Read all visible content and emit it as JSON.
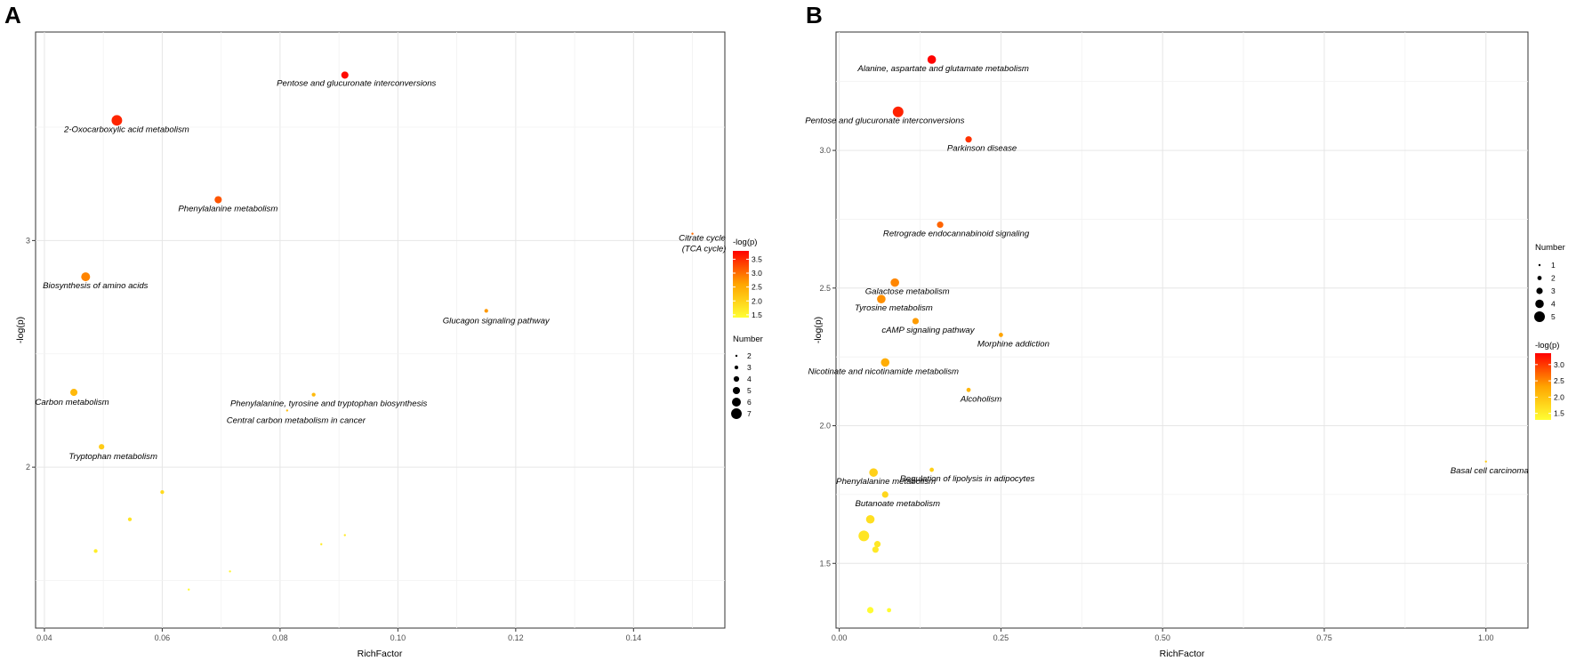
{
  "chart_data": [
    {
      "panel": "A",
      "type": "scatter",
      "xlabel": "RichFactor",
      "ylabel": "-log(p)",
      "xlim": [
        0.0385,
        0.1555
      ],
      "ylim": [
        1.29,
        3.92
      ],
      "xticks": [
        0.04,
        0.06,
        0.08,
        0.1,
        0.12,
        0.14
      ],
      "xtick_labels": [
        "0.04",
        "0.06",
        "0.08",
        "0.10",
        "0.12",
        "0.14"
      ],
      "yticks": [
        2,
        3
      ],
      "ytick_labels": [
        "2",
        "3"
      ],
      "color_legend": {
        "title": "-log(p)",
        "min": 1.4,
        "max": 3.8,
        "ticks": [
          1.5,
          2.0,
          2.5,
          3.0,
          3.5
        ],
        "tick_labels": [
          "1.5",
          "2.0",
          "2.5",
          "3.0",
          "3.5"
        ]
      },
      "size_legend": {
        "title": "Number",
        "values": [
          2,
          3,
          4,
          5,
          6,
          7
        ],
        "labels": [
          "2",
          "3",
          "4",
          "5",
          "6",
          "7"
        ]
      },
      "points": [
        {
          "x": 0.091,
          "y": 3.73,
          "size": 5,
          "label": "Pentose and glucuronate interconversions"
        },
        {
          "x": 0.0523,
          "y": 3.53,
          "size": 7,
          "label": "2-Oxocarboxylic acid metabolism"
        },
        {
          "x": 0.0695,
          "y": 3.18,
          "size": 5,
          "label": "Phenylalanine metabolism"
        },
        {
          "x": 0.15,
          "y": 3.03,
          "size": 2,
          "label": "Citrate cycle",
          "label2": "(TCA cycle)"
        },
        {
          "x": 0.047,
          "y": 2.84,
          "size": 6,
          "label": "Biosynthesis of amino acids"
        },
        {
          "x": 0.115,
          "y": 2.69,
          "size": 3,
          "label": "Glucagon signaling pathway"
        },
        {
          "x": 0.045,
          "y": 2.33,
          "size": 5,
          "label": "Carbon metabolism"
        },
        {
          "x": 0.0857,
          "y": 2.32,
          "size": 3,
          "label": "Phenylalanine, tyrosine and tryptophan biosynthesis"
        },
        {
          "x": 0.0812,
          "y": 2.25,
          "size": 2,
          "label": "Central carbon metabolism in cancer"
        },
        {
          "x": 0.0497,
          "y": 2.09,
          "size": 4,
          "label": "Tryptophan metabolism"
        },
        {
          "x": 0.06,
          "y": 1.89,
          "size": 3,
          "label": ""
        },
        {
          "x": 0.0545,
          "y": 1.77,
          "size": 3,
          "label": ""
        },
        {
          "x": 0.0487,
          "y": 1.63,
          "size": 3,
          "label": ""
        },
        {
          "x": 0.091,
          "y": 1.7,
          "size": 2,
          "label": ""
        },
        {
          "x": 0.087,
          "y": 1.66,
          "size": 2,
          "label": ""
        },
        {
          "x": 0.0715,
          "y": 1.54,
          "size": 2,
          "label": ""
        },
        {
          "x": 0.0645,
          "y": 1.46,
          "size": 2,
          "label": ""
        }
      ]
    },
    {
      "panel": "B",
      "type": "scatter",
      "xlabel": "RichFactor",
      "ylabel": "-log(p)",
      "xlim": [
        -0.005,
        1.065
      ],
      "ylim": [
        1.265,
        3.43
      ],
      "xticks": [
        0.0,
        0.25,
        0.5,
        0.75,
        1.0
      ],
      "xtick_labels": [
        "0.00",
        "0.25",
        "0.50",
        "0.75",
        "1.00"
      ],
      "yticks": [
        1.5,
        2.0,
        2.5,
        3.0
      ],
      "ytick_labels": [
        "1.5",
        "2.0",
        "2.5",
        "3.0"
      ],
      "size_legend": {
        "title": "Number",
        "values": [
          1,
          2,
          3,
          4,
          5
        ],
        "labels": [
          "1",
          "2",
          "3",
          "4",
          "5"
        ]
      },
      "color_legend": {
        "title": "-log(p)",
        "min": 1.3,
        "max": 3.35,
        "ticks": [
          1.5,
          2.0,
          2.5,
          3.0
        ],
        "tick_labels": [
          "1.5",
          "2.0",
          "2.5",
          "3.0"
        ]
      },
      "points": [
        {
          "x": 0.143,
          "y": 3.33,
          "size": 4,
          "label": "Alanine, aspartate and glutamate metabolism"
        },
        {
          "x": 0.091,
          "y": 3.14,
          "size": 5,
          "label": "Pentose and glucuronate interconversions"
        },
        {
          "x": 0.2,
          "y": 3.04,
          "size": 3,
          "label": "Parkinson disease"
        },
        {
          "x": 0.156,
          "y": 2.73,
          "size": 3,
          "label": "Retrograde endocannabinoid signaling"
        },
        {
          "x": 0.086,
          "y": 2.52,
          "size": 4,
          "label": "Galactose metabolism"
        },
        {
          "x": 0.065,
          "y": 2.46,
          "size": 4,
          "label": "Tyrosine metabolism"
        },
        {
          "x": 0.118,
          "y": 2.38,
          "size": 3,
          "label": "cAMP signaling pathway"
        },
        {
          "x": 0.25,
          "y": 2.33,
          "size": 2,
          "label": "Morphine addiction"
        },
        {
          "x": 0.071,
          "y": 2.23,
          "size": 4,
          "label": "Nicotinate and nicotinamide metabolism"
        },
        {
          "x": 0.2,
          "y": 2.13,
          "size": 2,
          "label": "Alcoholism"
        },
        {
          "x": 0.143,
          "y": 1.84,
          "size": 2,
          "label": "Regulation of lipolysis in adipocytes"
        },
        {
          "x": 0.053,
          "y": 1.83,
          "size": 4,
          "label": "Phenylalanine metabolism"
        },
        {
          "x": 1.0,
          "y": 1.87,
          "size": 1,
          "label": "Basal cell carcinoma"
        },
        {
          "x": 0.071,
          "y": 1.75,
          "size": 3,
          "label": "Butanoate metabolism"
        },
        {
          "x": 0.048,
          "y": 1.66,
          "size": 4,
          "label": ""
        },
        {
          "x": 0.038,
          "y": 1.6,
          "size": 5,
          "label": ""
        },
        {
          "x": 0.059,
          "y": 1.57,
          "size": 3,
          "label": ""
        },
        {
          "x": 0.056,
          "y": 1.55,
          "size": 3,
          "label": ""
        },
        {
          "x": 0.048,
          "y": 1.33,
          "size": 3,
          "label": ""
        },
        {
          "x": 0.077,
          "y": 1.33,
          "size": 2,
          "label": ""
        }
      ]
    }
  ]
}
